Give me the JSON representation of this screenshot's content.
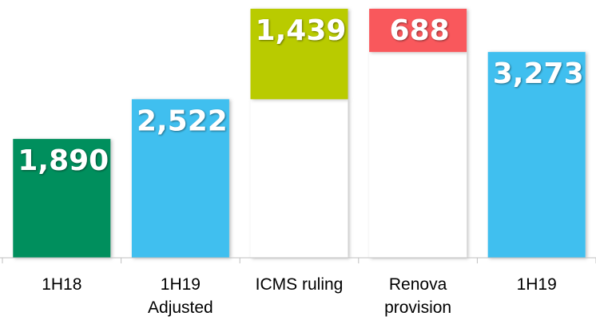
{
  "chart_data": {
    "type": "waterfall",
    "categories": [
      "1H18",
      "1H19 Adjusted",
      "ICMS ruling",
      "Renova provision",
      "1H19"
    ],
    "values": [
      1890,
      2522,
      1439,
      -688,
      3273
    ],
    "value_labels": [
      "1,890",
      "2,522",
      "1,439",
      "688",
      "3,273"
    ],
    "measure": [
      "absolute",
      "absolute",
      "relative",
      "relative",
      "absolute"
    ],
    "colors": [
      "#008f5d",
      "#41bfef",
      "#b9cb00",
      "#f9585c",
      "#41bfef"
    ],
    "ylim": [
      0,
      4100
    ]
  }
}
